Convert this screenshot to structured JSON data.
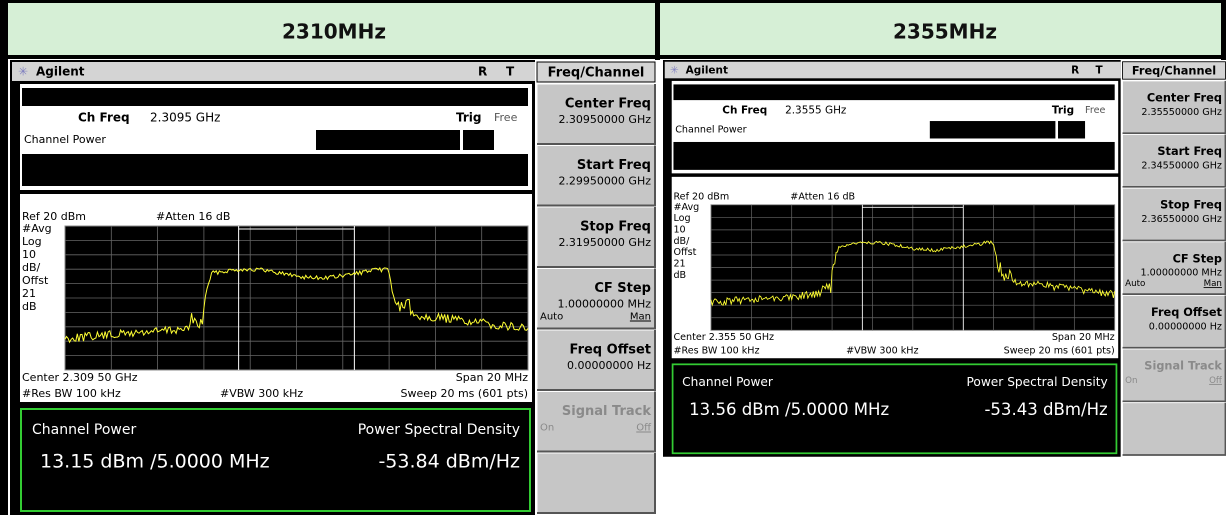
{
  "header": [
    "2310MHz",
    "2355MHz"
  ],
  "panels": [
    {
      "brand": "Agilent",
      "status": [
        "R",
        "T"
      ],
      "ch_freq_label": "Ch Freq",
      "ch_freq": "2.3095 GHz",
      "trig_label": "Trig",
      "trig": "Free",
      "mode": "Channel Power",
      "ref": "Ref 20 dBm",
      "atten": "#Atten 16 dB",
      "scale": [
        "#Avg",
        "Log",
        "10",
        "dB/",
        "Offst",
        "21",
        "dB"
      ],
      "center": "Center 2.309 50 GHz",
      "span": "Span 20 MHz",
      "rbw": "#Res BW 100 kHz",
      "vbw": "#VBW 300 kHz",
      "sweep": "Sweep 20 ms (601 pts)",
      "result_labels": [
        "Channel Power",
        "Power Spectral Density"
      ],
      "results": [
        "13.15 dBm /5.0000 MHz",
        "-53.84 dBm/Hz"
      ],
      "menu_title": "Freq/Channel",
      "menu": [
        {
          "label": "Center Freq",
          "value": "2.30950000 GHz"
        },
        {
          "label": "Start Freq",
          "value": "2.29950000 GHz"
        },
        {
          "label": "Stop Freq",
          "value": "2.31950000 GHz"
        },
        {
          "label": "CF Step",
          "value": "1.00000000 MHz",
          "options": [
            "Auto",
            "Man"
          ]
        },
        {
          "label": "Freq Offset",
          "value": "0.00000000 Hz"
        },
        {
          "label": "Signal Track",
          "options": [
            "On",
            "Off"
          ]
        }
      ]
    },
    {
      "brand": "Agilent",
      "status": [
        "R",
        "T"
      ],
      "ch_freq_label": "Ch Freq",
      "ch_freq": "2.3555 GHz",
      "trig_label": "Trig",
      "trig": "Free",
      "mode": "Channel Power",
      "ref": "Ref 20 dBm",
      "atten": "#Atten 16 dB",
      "scale": [
        "#Avg",
        "Log",
        "10",
        "dB/",
        "Offst",
        "21",
        "dB"
      ],
      "center": "Center 2.355 50 GHz",
      "span": "Span 20 MHz",
      "rbw": "#Res BW 100 kHz",
      "vbw": "#VBW 300 kHz",
      "sweep": "Sweep 20 ms (601 pts)",
      "result_labels": [
        "Channel Power",
        "Power Spectral Density"
      ],
      "results": [
        "13.56 dBm /5.0000 MHz",
        "-53.43 dBm/Hz"
      ],
      "menu_title": "Freq/Channel",
      "menu": [
        {
          "label": "Center Freq",
          "value": "2.35550000 GHz"
        },
        {
          "label": "Start Freq",
          "value": "2.34550000 GHz"
        },
        {
          "label": "Stop Freq",
          "value": "2.36550000 GHz"
        },
        {
          "label": "CF Step",
          "value": "1.00000000 MHz",
          "options": [
            "Auto",
            "Man"
          ]
        },
        {
          "label": "Freq Offset",
          "value": "0.00000000 Hz"
        },
        {
          "label": "Signal Track",
          "options": [
            "On",
            "Off"
          ]
        }
      ]
    }
  ]
}
